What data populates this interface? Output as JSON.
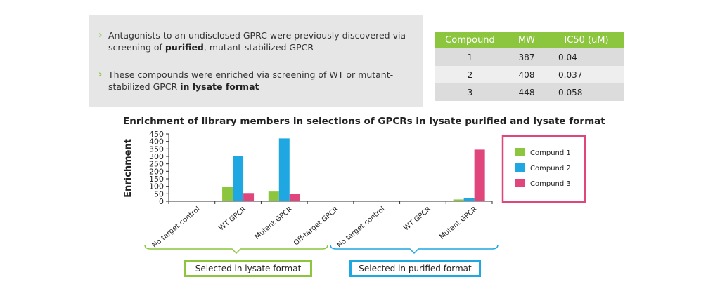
{
  "bullets": [
    {
      "pre": "Antagonists to an undisclosed GPRC were previously discovered via screening of ",
      "bold": "purified",
      "post": ", mutant-stabilized GPCR"
    },
    {
      "pre": "These compounds were enriched via screening of WT or mutant-stabilized GPCR ",
      "bold": "in lysate format",
      "post": ""
    }
  ],
  "table": {
    "headers": [
      "Compound",
      "MW",
      "IC50 (uM)"
    ],
    "rows": [
      [
        "1",
        "387",
        "0.04"
      ],
      [
        "2",
        "408",
        "0.037"
      ],
      [
        "3",
        "448",
        "0.058"
      ]
    ]
  },
  "group_labels": {
    "lysate": "Selected in lysate format",
    "purified": "Selected in purified format"
  },
  "colors": {
    "accent_green": "#8cc63f",
    "accent_blue": "#1ea7e0",
    "accent_pink": "#e0457b",
    "panel_gray": "#e6e6e6"
  },
  "chart_data": {
    "type": "bar",
    "title": "Enrichment of library members in selections of GPCRs in lysate purified and lysate format",
    "ylabel": "Enrichment",
    "xlabel": "",
    "ylim": [
      0,
      450
    ],
    "yticks": [
      0,
      50,
      100,
      150,
      200,
      250,
      300,
      350,
      400,
      450
    ],
    "grid": false,
    "legend": "right",
    "categories": [
      "No target control",
      "WT GPCR",
      "Mutant GPCR",
      "Off-target GPCR",
      "No target control",
      "WT GPCR",
      "Mutant GPCR"
    ],
    "series": [
      {
        "name": "Compund 1",
        "color": "#8cc63f",
        "values": [
          0,
          95,
          65,
          0,
          0,
          0,
          12
        ]
      },
      {
        "name": "Compund 2",
        "color": "#1ea7e0",
        "values": [
          0,
          300,
          420,
          0,
          0,
          0,
          20
        ]
      },
      {
        "name": "Compund 3",
        "color": "#e0457b",
        "values": [
          0,
          55,
          50,
          0,
          0,
          0,
          345
        ]
      }
    ]
  }
}
